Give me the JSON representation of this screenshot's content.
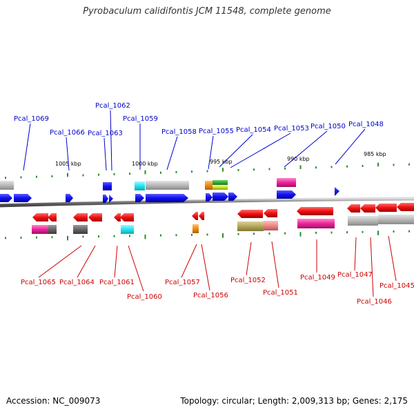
{
  "title": "Pyrobaculum calidifontis JCM 11548, complete genome",
  "footer": {
    "accession": "Accession: NC_009073",
    "summary": "Topology: circular; Length: 2,009,313 bp; Genes: 2,175"
  },
  "axis_ticks": [
    "1005 kbp",
    "1000 kbp",
    "995 kbp",
    "990 kbp",
    "985 kbp"
  ],
  "genes_top": [
    "Pcal_1069",
    "Pcal_1066",
    "Pcal_1063",
    "Pcal_1062",
    "Pcal_1059",
    "Pcal_1058",
    "Pcal_1055",
    "Pcal_1054",
    "Pcal_1053",
    "Pcal_1050",
    "Pcal_1048"
  ],
  "genes_bottom": [
    "Pcal_1065",
    "Pcal_1064",
    "Pcal_1061",
    "Pcal_1060",
    "Pcal_1057",
    "Pcal_1056",
    "Pcal_1052",
    "Pcal_1051",
    "Pcal_1049",
    "Pcal_1047",
    "Pcal_1046",
    "Pcal_1045"
  ],
  "colors": {
    "forward": "#1010ee",
    "reverse": "#ee1010",
    "gray": "#b8b8b8",
    "cyan": "#22e6f0",
    "magenta": "#ee2299",
    "orange": "#f08a10",
    "olive": "#b3a65a",
    "salmon": "#ee8888",
    "green": "#2ea52e",
    "dark_gray": "#666666",
    "tick": "#2e8b2e",
    "top_label": "#0000cc",
    "bottom_label": "#cc0000",
    "backbone": "#777777"
  }
}
